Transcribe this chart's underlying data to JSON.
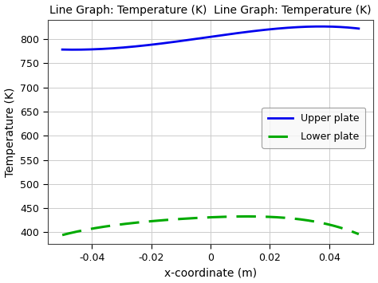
{
  "title": "Line Graph: Temperature (K)  Line Graph: Temperature (K)",
  "xlabel": "x-coordinate (m)",
  "ylabel": "Temperature (K)",
  "xlim": [
    -0.055,
    0.055
  ],
  "ylim": [
    375,
    840
  ],
  "yticks": [
    400,
    450,
    500,
    550,
    600,
    650,
    700,
    750,
    800
  ],
  "xticks": [
    -0.04,
    -0.02,
    0.0,
    0.02,
    0.04
  ],
  "upper_color": "#0000ee",
  "lower_color": "#00aa00",
  "legend_upper": "Upper plate",
  "legend_lower": "Lower plate",
  "background_color": "#ffffff",
  "grid_color": "#cccccc",
  "x_key_upper": [
    -0.05,
    -0.04,
    -0.02,
    0.0,
    0.02,
    0.03,
    0.05
  ],
  "y_key_upper": [
    778,
    780,
    787,
    806,
    820,
    825,
    822
  ],
  "x_key_lower": [
    -0.05,
    -0.04,
    -0.02,
    0.0,
    0.015,
    0.025,
    0.04,
    0.05
  ],
  "y_key_lower": [
    394,
    408,
    422,
    432,
    432,
    430,
    416,
    396
  ],
  "figwidth": 4.74,
  "figheight": 3.55,
  "dpi": 100
}
